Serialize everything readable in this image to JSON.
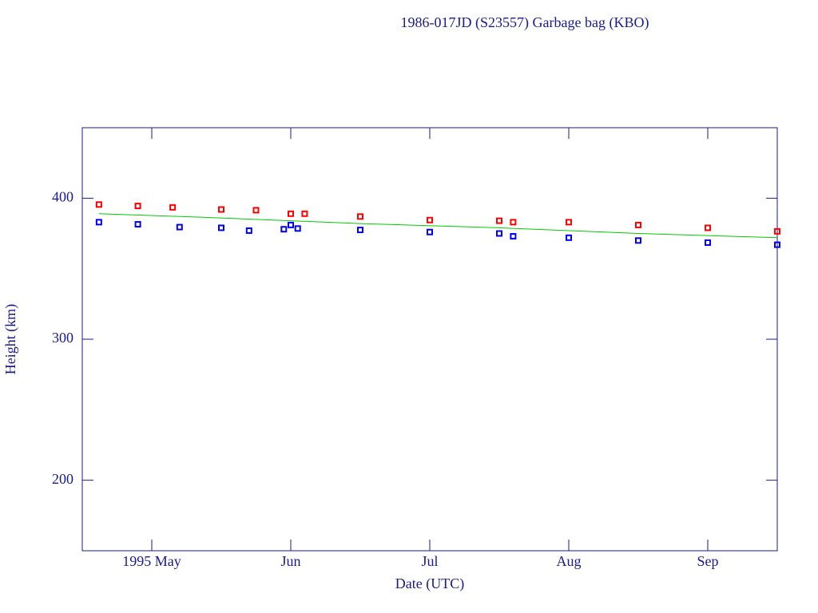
{
  "chart_data": {
    "type": "scatter",
    "title": "1986-017JD (S23557) Garbage bag (KBO)",
    "x_label": "Date (UTC)",
    "y_label": "Height (km)",
    "xlim": [
      4.5,
      9.5
    ],
    "xticks": [
      {
        "value": 5,
        "label": "1995 May"
      },
      {
        "value": 6,
        "label": "Jun"
      },
      {
        "value": 7,
        "label": "Jul"
      },
      {
        "value": 8,
        "label": "Aug"
      },
      {
        "value": 9,
        "label": "Sep"
      }
    ],
    "ylim": [
      150,
      450
    ],
    "yticks": [
      200,
      300,
      400
    ],
    "axis_color": "#1a1a8c",
    "series": [
      {
        "style": "markers",
        "color": "#ff0000",
        "x": [
          4.62,
          4.9,
          5.15,
          5.5,
          5.75,
          6.0,
          6.1,
          6.5,
          7.0,
          7.5,
          7.6,
          8.0,
          8.5,
          9.0,
          9.5
        ],
        "values": [
          395.5,
          394.5,
          393.5,
          392,
          391.5,
          389,
          389,
          387,
          384.5,
          384,
          383,
          383,
          381,
          379,
          376.5
        ]
      },
      {
        "style": "line",
        "color": "#00cc00",
        "x": [
          4.62,
          5.5,
          6.5,
          7.5,
          8.5,
          9.5
        ],
        "values": [
          389,
          386,
          382,
          379,
          375,
          372
        ]
      },
      {
        "style": "markers",
        "color": "#0000ff",
        "x": [
          4.62,
          4.9,
          5.2,
          5.5,
          5.7,
          5.95,
          6.0,
          6.05,
          6.5,
          7.0,
          7.5,
          7.6,
          8.0,
          8.5,
          9.0,
          9.5
        ],
        "values": [
          383,
          381.5,
          379.5,
          379,
          377,
          378,
          381,
          378.5,
          377.5,
          376,
          375,
          373,
          372,
          370,
          368.5,
          367
        ]
      }
    ]
  }
}
